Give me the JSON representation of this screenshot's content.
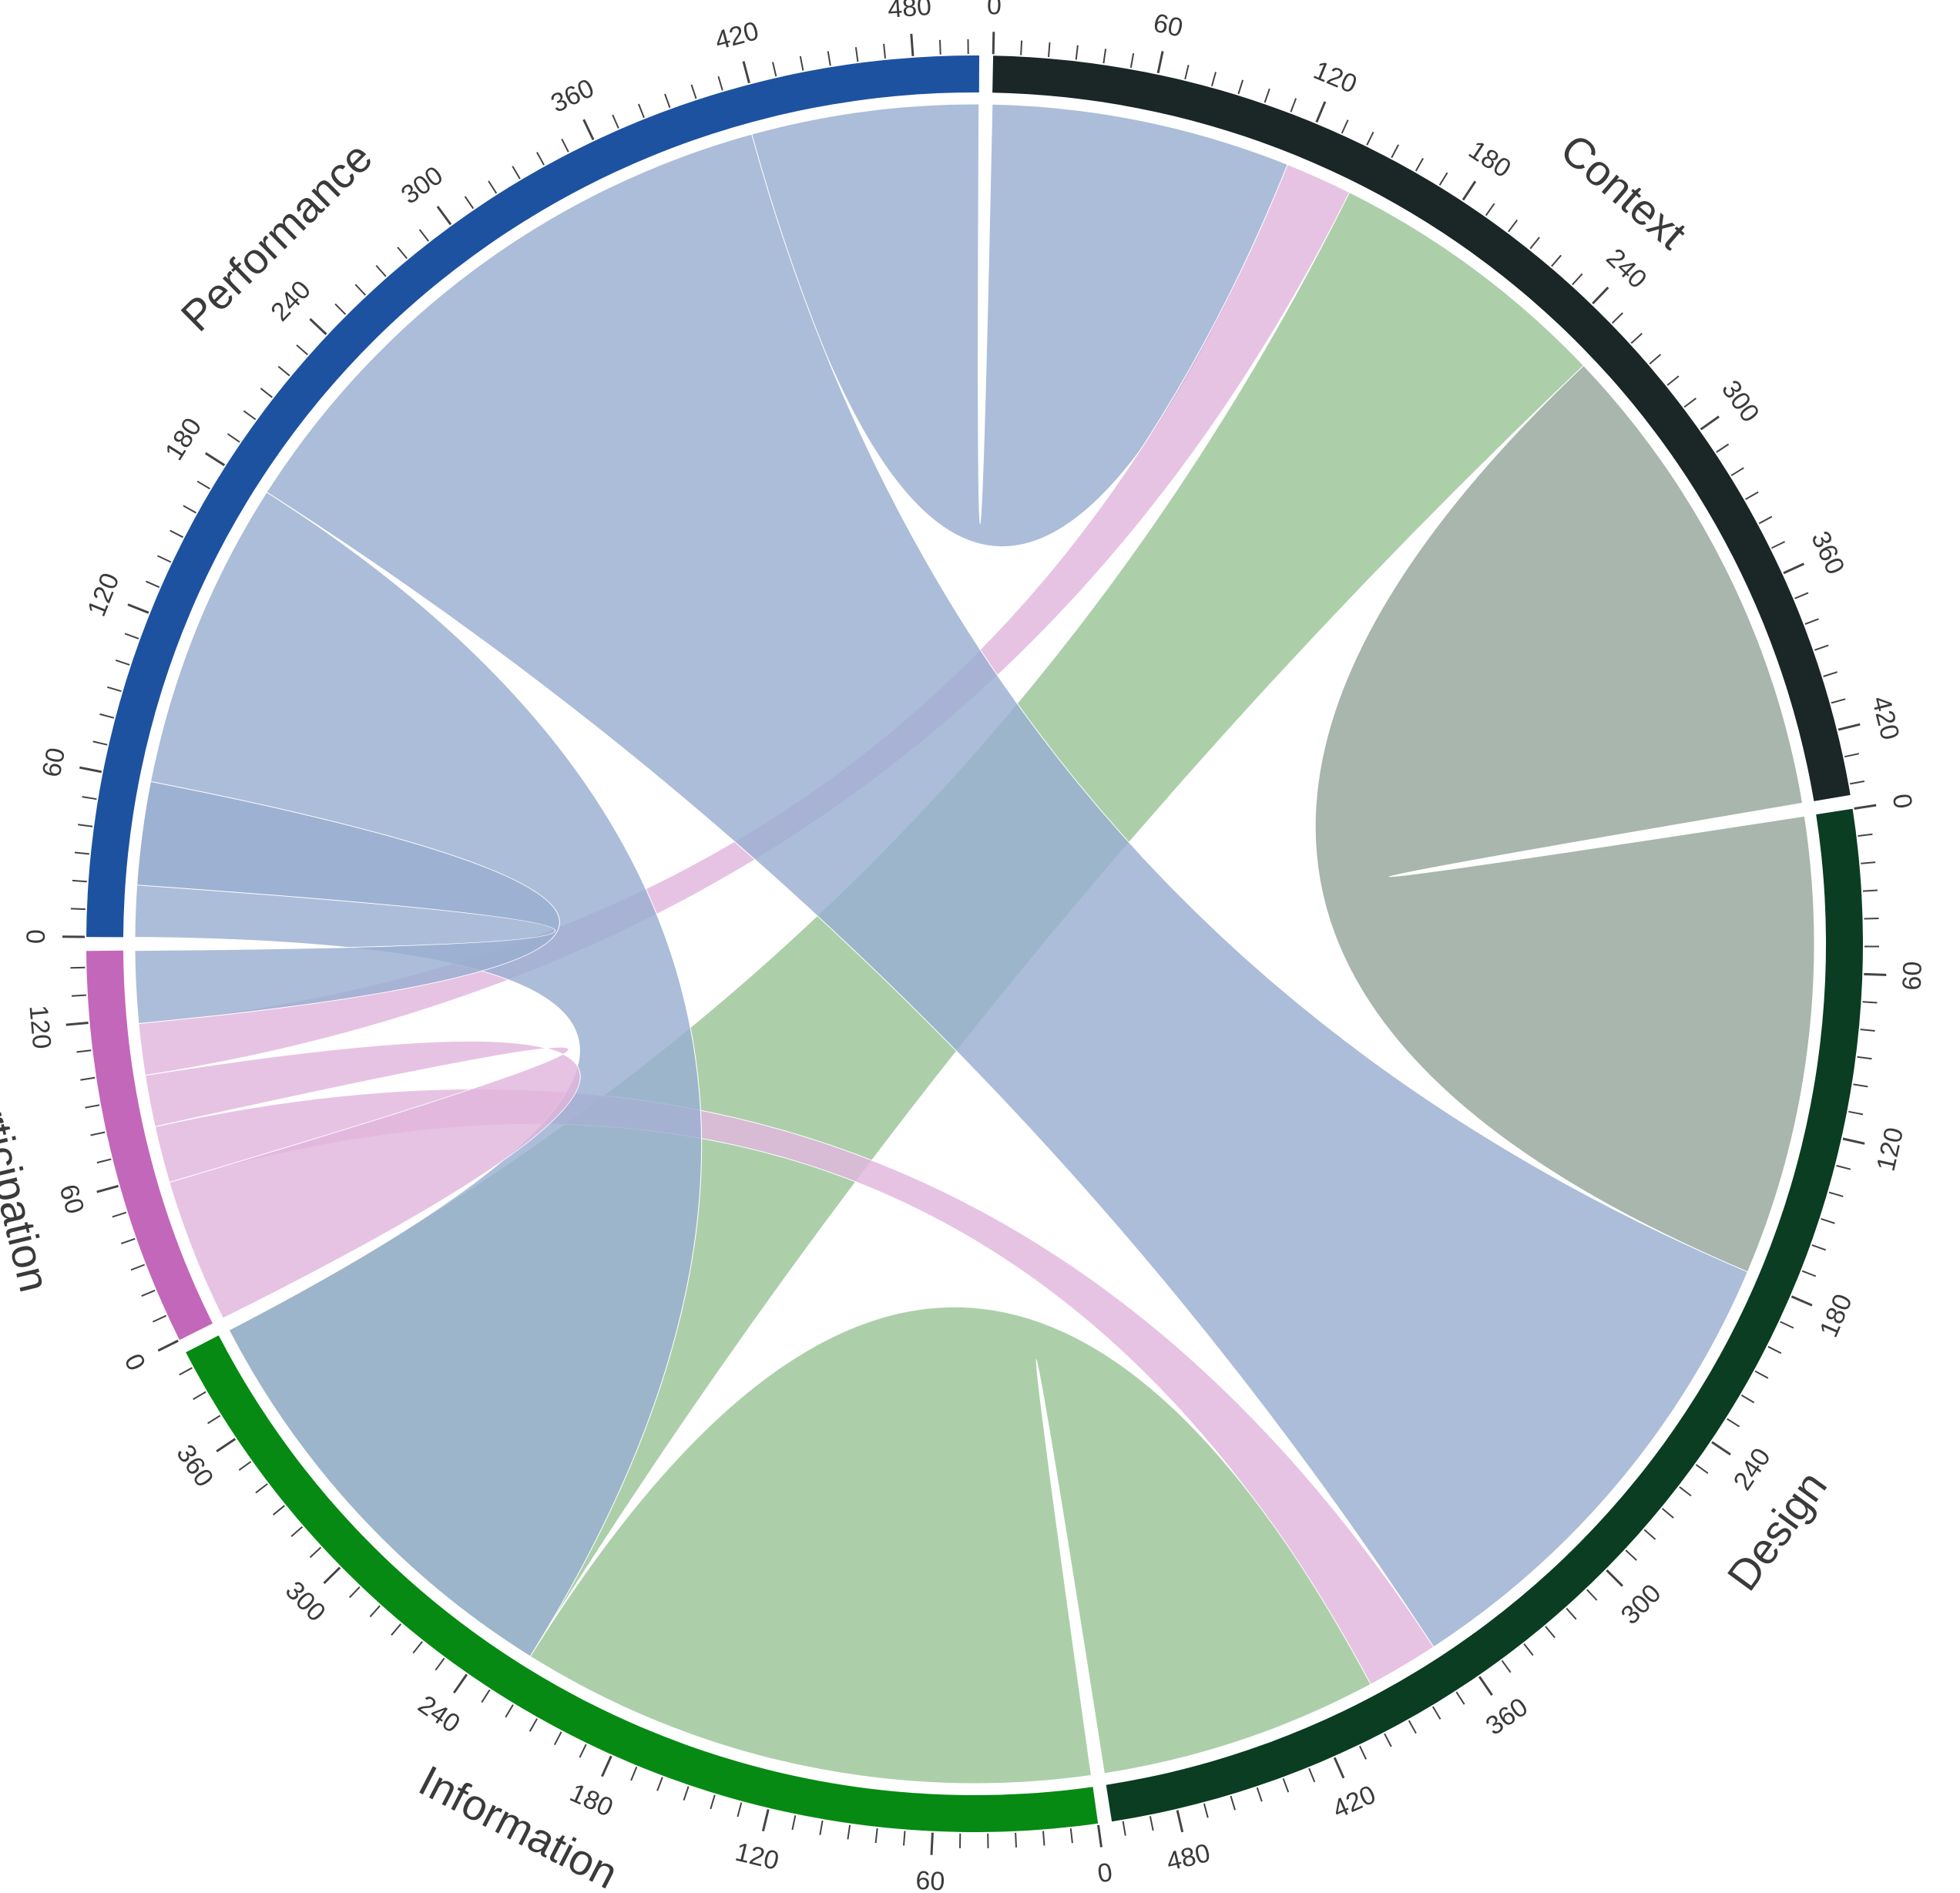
{
  "chart_data": {
    "type": "chord",
    "title": "",
    "groups": [
      {
        "name": "Context",
        "color": "#1b2626",
        "total": 444
      },
      {
        "name": "Design",
        "color": "#0a3d22",
        "total": 504
      },
      {
        "name": "Information",
        "color": "#068a14",
        "total": 396
      },
      {
        "name": "Participation",
        "color": "#c367bb",
        "total": 146
      },
      {
        "name": "Performance",
        "color": "#1d52a0",
        "total": 504
      }
    ],
    "tick_labels": [
      {
        "group": "Context",
        "labels": [
          "0",
          "60",
          "120",
          "180",
          "240",
          "300",
          "360",
          "420"
        ]
      },
      {
        "group": "Design",
        "labels": [
          "0",
          "60",
          "120",
          "180",
          "240",
          "300",
          "360",
          "420",
          "480"
        ]
      },
      {
        "group": "Information",
        "labels": [
          "0",
          "60",
          "120",
          "180",
          "240",
          "300",
          "360"
        ]
      },
      {
        "group": "Participation",
        "labels": [
          "0",
          "60",
          "120"
        ]
      },
      {
        "group": "Performance",
        "labels": [
          "0",
          "60",
          "120",
          "180",
          "240",
          "300",
          "360",
          "420",
          "480"
        ]
      }
    ],
    "chords": [
      {
        "source": "Context",
        "source_range": [
          0,
          116
        ],
        "target": "Performance",
        "target_range": [
          416,
          504
        ],
        "color": "#9aaed1"
      },
      {
        "source": "Context",
        "source_range": [
          116,
          142
        ],
        "target": "Participation",
        "target_range": [
          98,
          118
        ],
        "color": "#e2b6dd"
      },
      {
        "source": "Context",
        "source_range": [
          142,
          254
        ],
        "target": "Information",
        "target_range": [
          224,
          396
        ],
        "color": "#9ac597"
      },
      {
        "source": "Context",
        "source_range": [
          254,
          444
        ],
        "target": "Design",
        "target_range": [
          0,
          178
        ],
        "color": "#95a69c"
      },
      {
        "source": "Design",
        "source_range": [
          178,
          368
        ],
        "target": "Performance",
        "target_range": [
          180,
          416
        ],
        "color": "#9aaed1"
      },
      {
        "source": "Design",
        "source_range": [
          368,
          396
        ],
        "target": "Participation",
        "target_range": [
          56,
          78
        ],
        "color": "#e2b6dd"
      },
      {
        "source": "Design",
        "source_range": [
          396,
          504
        ],
        "target": "Information",
        "target_range": [
          0,
          224
        ],
        "color": "#9ac597"
      },
      {
        "source": "Performance",
        "source_range": [
          0,
          180
        ],
        "target": "Information",
        "target_range": [
          224,
          396
        ],
        "color": "#9aaed1"
      },
      {
        "source": "Performance",
        "source_range": [
          20,
          60
        ],
        "target": "Participation",
        "target_range": [
          118,
          146
        ],
        "color": "#9aaed1"
      },
      {
        "source": "Participation",
        "source_range": [
          0,
          56
        ],
        "target": "Participation",
        "target_range": [
          78,
          98
        ],
        "color": "#e2b6dd"
      }
    ]
  }
}
